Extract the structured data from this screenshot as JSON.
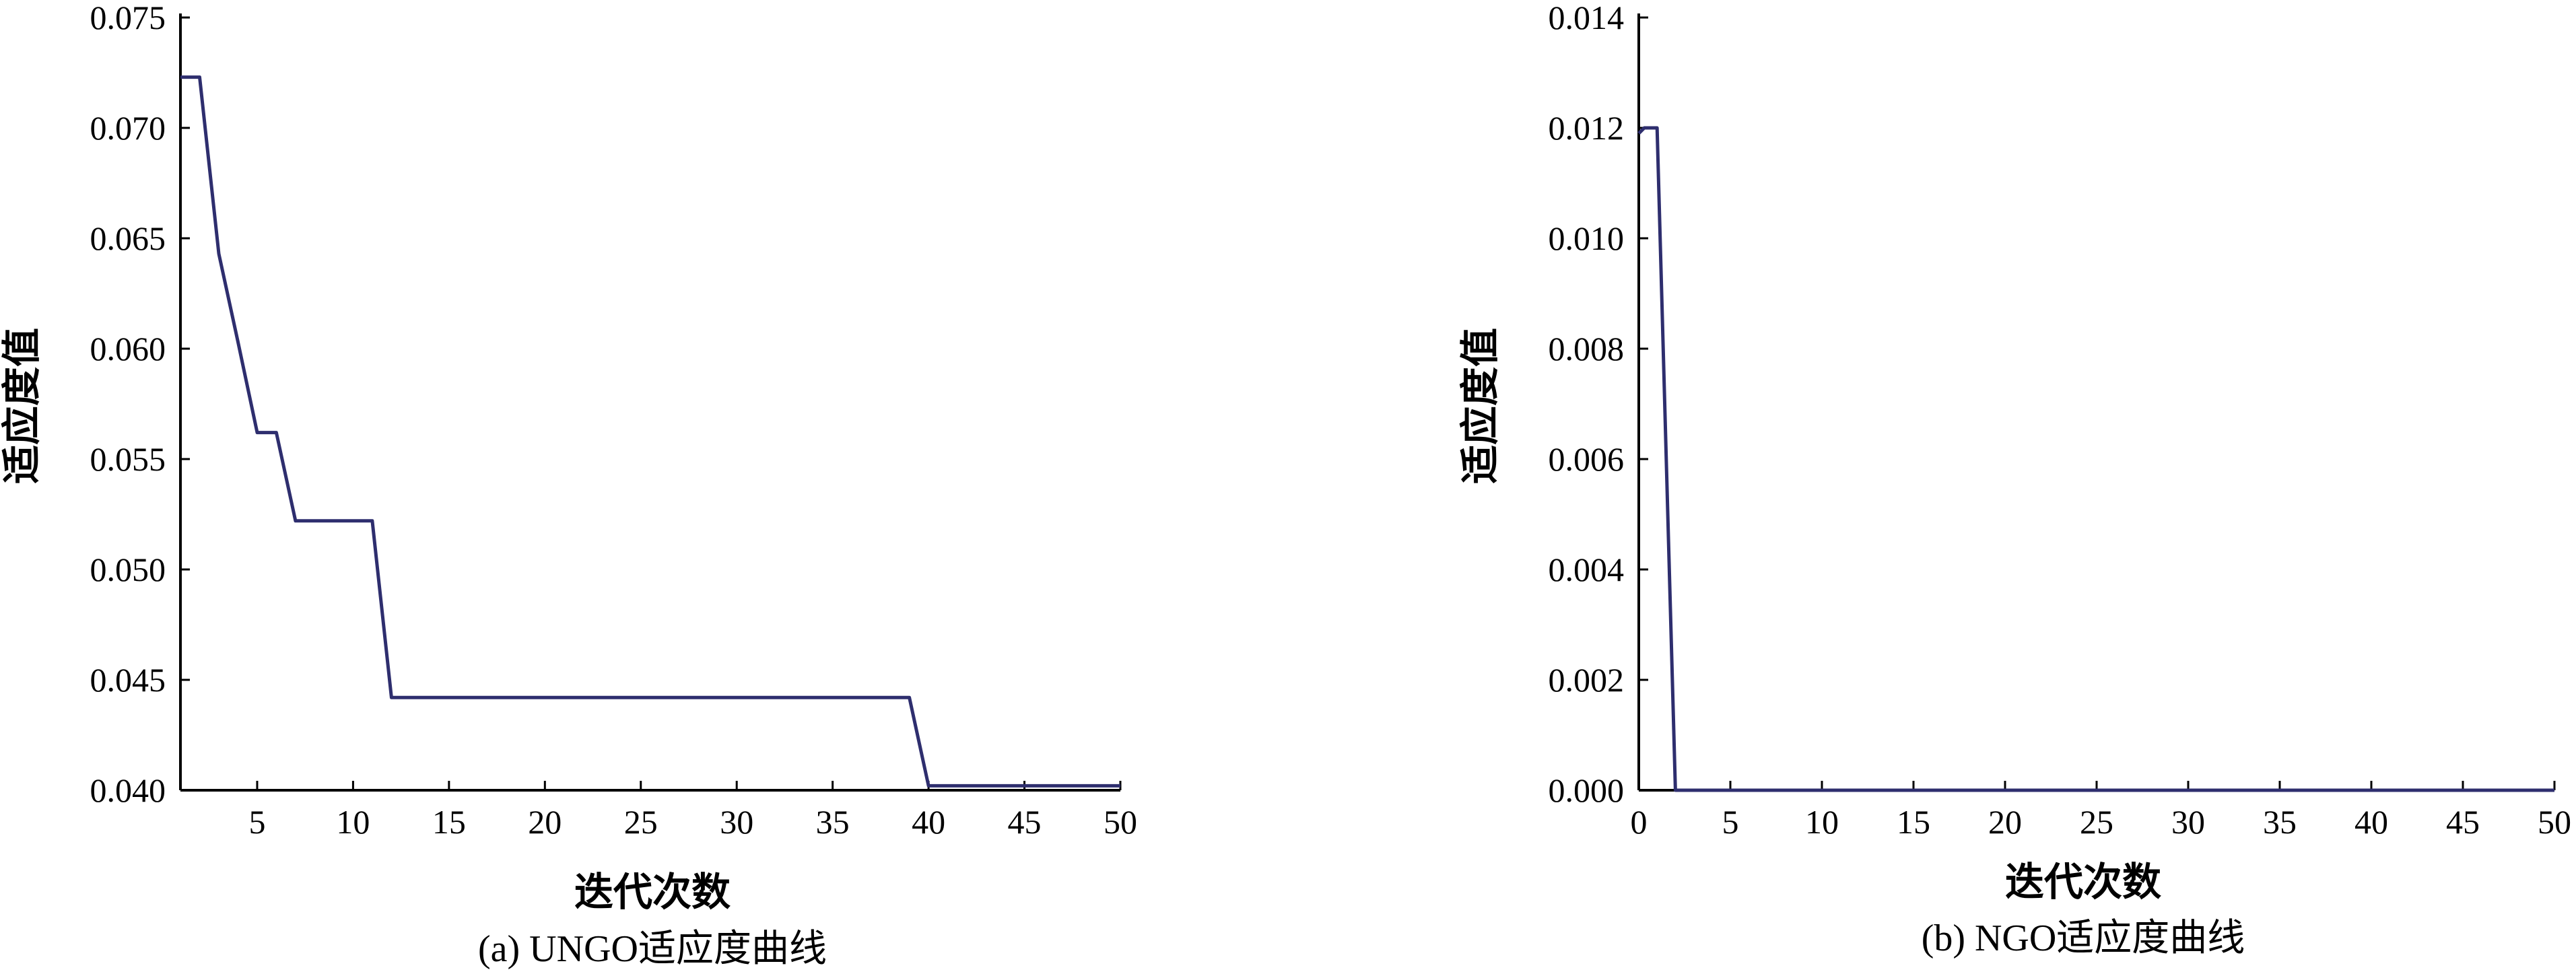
{
  "chart_data": [
    {
      "type": "line",
      "caption": "(a) UNGO适应度曲线",
      "xlabel": "迭代次数",
      "ylabel": "适应度值",
      "xlim": [
        1,
        50
      ],
      "ylim": [
        0.04,
        0.075
      ],
      "xticks": [
        5,
        10,
        15,
        20,
        25,
        30,
        35,
        40,
        45,
        50
      ],
      "yticks": [
        "0.040",
        "0.045",
        "0.050",
        "0.055",
        "0.060",
        "0.065",
        "0.070",
        "0.075"
      ],
      "series": [
        {
          "color": "#2e2e6e",
          "x": [
            1,
            2,
            3,
            4,
            5,
            6,
            7,
            8,
            9,
            10,
            11,
            12,
            13,
            14,
            15,
            16,
            17,
            18,
            19,
            20,
            21,
            22,
            23,
            24,
            25,
            26,
            27,
            28,
            29,
            30,
            31,
            32,
            33,
            34,
            35,
            36,
            37,
            38,
            39,
            40,
            41,
            42,
            43,
            44,
            45,
            46,
            47,
            48,
            49,
            50
          ],
          "y": [
            0.0723,
            0.0723,
            0.0643,
            0.0603,
            0.0562,
            0.0562,
            0.0522,
            0.0522,
            0.0522,
            0.0522,
            0.0522,
            0.0442,
            0.0442,
            0.0442,
            0.0442,
            0.0442,
            0.0442,
            0.0442,
            0.0442,
            0.0442,
            0.0442,
            0.0442,
            0.0442,
            0.0442,
            0.0442,
            0.0442,
            0.0442,
            0.0442,
            0.0442,
            0.0442,
            0.0442,
            0.0442,
            0.0442,
            0.0442,
            0.0442,
            0.0442,
            0.0442,
            0.0442,
            0.0442,
            0.0402,
            0.0402,
            0.0402,
            0.0402,
            0.0402,
            0.0402,
            0.0402,
            0.0402,
            0.0402,
            0.0402,
            0.0402
          ]
        }
      ]
    },
    {
      "type": "line",
      "caption": "(b) NGO适应度曲线",
      "xlabel": "迭代次数",
      "ylabel": "适应度值",
      "xlim": [
        0,
        50
      ],
      "ylim": [
        0,
        0.014
      ],
      "xticks": [
        0,
        5,
        10,
        15,
        20,
        25,
        30,
        35,
        40,
        45,
        50
      ],
      "yticks": [
        "0.000",
        "0.002",
        "0.004",
        "0.006",
        "0.008",
        "0.010",
        "0.012",
        "0.014"
      ],
      "series": [
        {
          "color": "#2e2e6e",
          "x": [
            0,
            0.3,
            1,
            2,
            3,
            4,
            5,
            6,
            7,
            8,
            9,
            10,
            11,
            12,
            13,
            14,
            15,
            16,
            17,
            18,
            19,
            20,
            21,
            22,
            23,
            24,
            25,
            26,
            27,
            28,
            29,
            30,
            31,
            32,
            33,
            34,
            35,
            36,
            37,
            38,
            39,
            40,
            41,
            42,
            43,
            44,
            45,
            46,
            47,
            48,
            49,
            50
          ],
          "y": [
            0.0119,
            0.012,
            0.012,
            0,
            0,
            0,
            0,
            0,
            0,
            0,
            0,
            0,
            0,
            0,
            0,
            0,
            0,
            0,
            0,
            0,
            0,
            0,
            0,
            0,
            0,
            0,
            0,
            0,
            0,
            0,
            0,
            0,
            0,
            0,
            0,
            0,
            0,
            0,
            0,
            0,
            0,
            0,
            0,
            0,
            0,
            0,
            0,
            0,
            0,
            0,
            0,
            0
          ]
        }
      ]
    }
  ]
}
